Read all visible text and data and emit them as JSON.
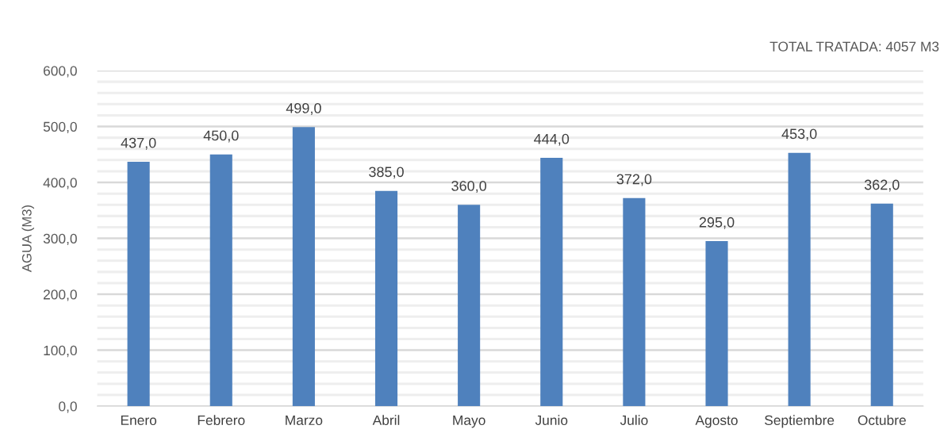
{
  "chart_data": {
    "type": "bar",
    "ylabel": "AGUA (M3)",
    "annotations": [
      "TOTAL TRATADA: 4057 M3"
    ],
    "categories": [
      "Enero",
      "Febrero",
      "Marzo",
      "Abril",
      "Mayo",
      "Junio",
      "Julio",
      "Agosto",
      "Septiembre",
      "Octubre"
    ],
    "values": [
      437,
      450,
      499,
      385,
      360,
      444,
      372,
      295,
      453,
      362
    ],
    "value_labels": [
      "437,0",
      "450,0",
      "499,0",
      "385,0",
      "360,0",
      "444,0",
      "372,0",
      "295,0",
      "453,0",
      "362,0"
    ],
    "color": "#4f81bd",
    "ylim": [
      0,
      600
    ],
    "yticks": [
      {
        "value": 0,
        "label": "0,0"
      },
      {
        "value": 20,
        "label": null
      },
      {
        "value": 40,
        "label": null
      },
      {
        "value": 60,
        "label": null
      },
      {
        "value": 80,
        "label": null
      },
      {
        "value": 100,
        "label": "100,0"
      },
      {
        "value": 120,
        "label": null
      },
      {
        "value": 140,
        "label": null
      },
      {
        "value": 160,
        "label": null
      },
      {
        "value": 180,
        "label": null
      },
      {
        "value": 200,
        "label": "200,0"
      },
      {
        "value": 220,
        "label": null
      },
      {
        "value": 240,
        "label": null
      },
      {
        "value": 260,
        "label": null
      },
      {
        "value": 280,
        "label": null
      },
      {
        "value": 300,
        "label": "300,0"
      },
      {
        "value": 320,
        "label": null
      },
      {
        "value": 340,
        "label": null
      },
      {
        "value": 360,
        "label": null
      },
      {
        "value": 380,
        "label": null
      },
      {
        "value": 400,
        "label": "400,0"
      },
      {
        "value": 420,
        "label": null
      },
      {
        "value": 440,
        "label": null
      },
      {
        "value": 460,
        "label": null
      },
      {
        "value": 480,
        "label": null
      },
      {
        "value": 500,
        "label": "500,0"
      },
      {
        "value": 520,
        "label": null
      },
      {
        "value": 540,
        "label": null
      },
      {
        "value": 560,
        "label": null
      },
      {
        "value": 580,
        "label": null
      },
      {
        "value": 600,
        "label": "600,0"
      }
    ],
    "grid": "y"
  }
}
